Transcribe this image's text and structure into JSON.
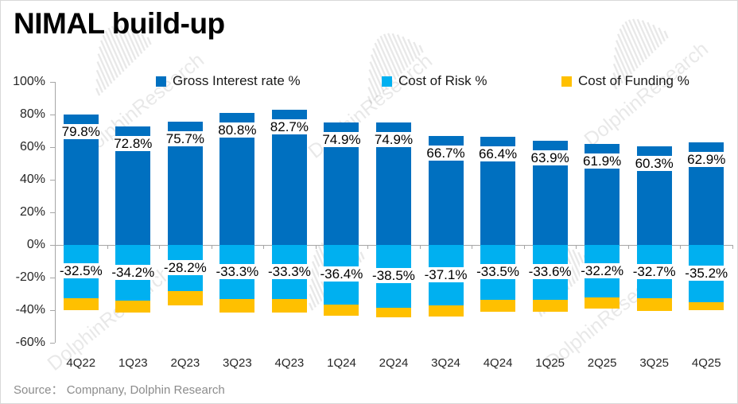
{
  "page": {
    "title": "NIMAL build-up",
    "source": "Source： Compnany, Dolphin Research",
    "watermark_text": "DolphinResearch"
  },
  "chart_data": {
    "type": "bar",
    "stacked": true,
    "title": "NIMAL build-up",
    "categories": [
      "4Q22",
      "1Q23",
      "2Q23",
      "3Q23",
      "4Q23",
      "1Q24",
      "2Q24",
      "3Q24",
      "4Q24",
      "1Q25",
      "2Q25",
      "3Q25",
      "4Q25"
    ],
    "series": [
      {
        "name": "Gross Interest rate %",
        "color": "#0070C0",
        "values": [
          79.8,
          72.8,
          75.7,
          80.8,
          82.7,
          74.9,
          74.9,
          66.7,
          66.4,
          63.9,
          61.9,
          60.3,
          62.9
        ],
        "labels": [
          "79.8%",
          "72.8%",
          "75.7%",
          "80.8%",
          "82.7%",
          "74.9%",
          "74.9%",
          "66.7%",
          "66.4%",
          "63.9%",
          "61.9%",
          "60.3%",
          "62.9%"
        ]
      },
      {
        "name": "Cost of Risk %",
        "color": "#00B0F0",
        "values": [
          -32.5,
          -34.2,
          -28.2,
          -33.3,
          -33.3,
          -36.4,
          -38.5,
          -37.1,
          -33.5,
          -33.6,
          -32.2,
          -32.7,
          -35.2
        ],
        "labels": [
          "-32.5%",
          "-34.2%",
          "-28.2%",
          "-33.3%",
          "-33.3%",
          "-36.4%",
          "-38.5%",
          "-37.1%",
          "-33.5%",
          "-33.6%",
          "-32.2%",
          "-32.7%",
          "-35.2%"
        ]
      },
      {
        "name": "Cost of Funding %",
        "color": "#FFC000",
        "values": [
          -7.5,
          -7.5,
          -9.0,
          -8.0,
          -8.0,
          -7.0,
          -6.0,
          -7.0,
          -7.5,
          -7.5,
          -7.0,
          -8.0,
          -5.0
        ],
        "labels": []
      }
    ],
    "y_axis": {
      "ticks": [
        "100%",
        "80%",
        "60%",
        "40%",
        "20%",
        "0%",
        "-20%",
        "-40%",
        "-60%"
      ],
      "max": 100,
      "min": -60,
      "step": 20
    },
    "legend_position": "top",
    "grid": false
  }
}
